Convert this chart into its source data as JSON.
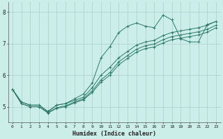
{
  "xlabel": "Humidex (Indice chaleur)",
  "bg_color": "#cceee8",
  "grid_color": "#aacccc",
  "line_color": "#2d7a6a",
  "xlim": [
    -0.5,
    23.5
  ],
  "ylim": [
    4.5,
    8.3
  ],
  "yticks": [
    5,
    6,
    7,
    8
  ],
  "xticks": [
    0,
    1,
    2,
    3,
    4,
    5,
    6,
    7,
    8,
    9,
    10,
    11,
    12,
    13,
    14,
    15,
    16,
    17,
    18,
    19,
    20,
    21,
    22,
    23
  ],
  "series1_x": [
    0,
    1,
    2,
    3,
    4,
    5,
    6,
    7,
    8,
    9,
    10,
    11,
    12,
    13,
    14,
    15,
    16,
    17,
    18,
    19,
    20,
    21,
    22,
    23
  ],
  "series1_y": [
    5.55,
    5.15,
    5.05,
    5.05,
    4.85,
    5.05,
    5.1,
    5.25,
    5.4,
    5.75,
    6.55,
    6.9,
    7.35,
    7.55,
    7.65,
    7.55,
    7.5,
    7.9,
    7.75,
    7.15,
    7.05,
    7.05,
    7.6,
    7.7
  ],
  "series2_x": [
    0,
    1,
    2,
    3,
    4,
    5,
    6,
    7,
    8,
    9,
    10,
    11,
    12,
    13,
    14,
    15,
    16,
    17,
    18,
    19,
    20,
    21,
    22,
    23
  ],
  "series2_y": [
    5.55,
    5.15,
    5.05,
    5.05,
    4.85,
    5.05,
    5.1,
    5.2,
    5.3,
    5.6,
    6.0,
    6.25,
    6.55,
    6.75,
    6.95,
    7.05,
    7.1,
    7.25,
    7.35,
    7.4,
    7.45,
    7.5,
    7.58,
    7.7
  ],
  "series3_x": [
    0,
    1,
    2,
    3,
    4,
    5,
    6,
    7,
    8,
    9,
    10,
    11,
    12,
    13,
    14,
    15,
    16,
    17,
    18,
    19,
    20,
    21,
    22,
    23
  ],
  "series3_y": [
    5.55,
    5.1,
    5.0,
    5.0,
    4.82,
    4.97,
    5.03,
    5.15,
    5.25,
    5.5,
    5.85,
    6.08,
    6.42,
    6.62,
    6.82,
    6.93,
    6.98,
    7.12,
    7.22,
    7.27,
    7.32,
    7.37,
    7.45,
    7.58
  ],
  "series4_x": [
    0,
    1,
    2,
    3,
    4,
    5,
    6,
    7,
    8,
    9,
    10,
    11,
    12,
    13,
    14,
    15,
    16,
    17,
    18,
    19,
    20,
    21,
    22,
    23
  ],
  "series4_y": [
    5.55,
    5.1,
    5.0,
    5.0,
    4.8,
    4.95,
    5.0,
    5.12,
    5.22,
    5.45,
    5.78,
    6.0,
    6.33,
    6.53,
    6.73,
    6.84,
    6.89,
    7.02,
    7.12,
    7.17,
    7.22,
    7.27,
    7.36,
    7.5
  ]
}
